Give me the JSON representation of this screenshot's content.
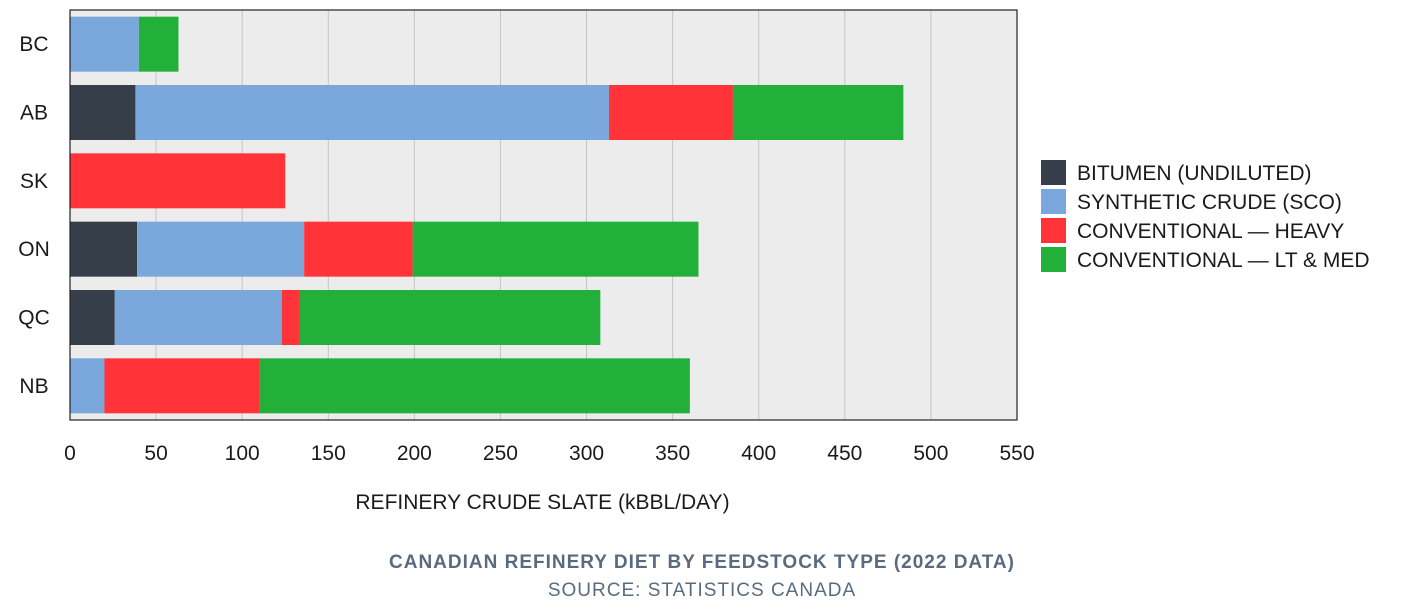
{
  "chart_data": {
    "type": "bar",
    "orientation": "horizontal",
    "stacked": true,
    "categories": [
      "BC",
      "AB",
      "SK",
      "ON",
      "QC",
      "NB"
    ],
    "series": [
      {
        "name": "BITUMEN (UNDILUTED)",
        "color": "#363e49",
        "values": [
          0,
          38,
          0,
          39,
          26,
          0
        ]
      },
      {
        "name": "SYNTHETIC CRUDE (SCO)",
        "color": "#7aa7dc",
        "values": [
          40,
          275,
          0,
          97,
          97,
          20
        ]
      },
      {
        "name": "CONVENTIONAL — HEAVY",
        "color": "#ff3338",
        "values": [
          0,
          72,
          125,
          63,
          10,
          90
        ]
      },
      {
        "name": "CONVENTIONAL — LT & MED",
        "color": "#22b03a",
        "values": [
          23,
          99,
          0,
          166,
          175,
          250
        ]
      }
    ],
    "xlabel": "REFINERY CRUDE SLATE (kBBL/DAY)",
    "ylabel": "",
    "xlim": [
      0,
      550
    ],
    "xticks": [
      0,
      50,
      100,
      150,
      200,
      250,
      300,
      350,
      400,
      450,
      500,
      550
    ],
    "grid": true,
    "legend_position": "right",
    "background_color": "#ececec"
  },
  "caption": {
    "title": "CANADIAN REFINERY DIET BY FEEDSTOCK TYPE (2022 DATA)",
    "source": "SOURCE: STATISTICS CANADA"
  }
}
